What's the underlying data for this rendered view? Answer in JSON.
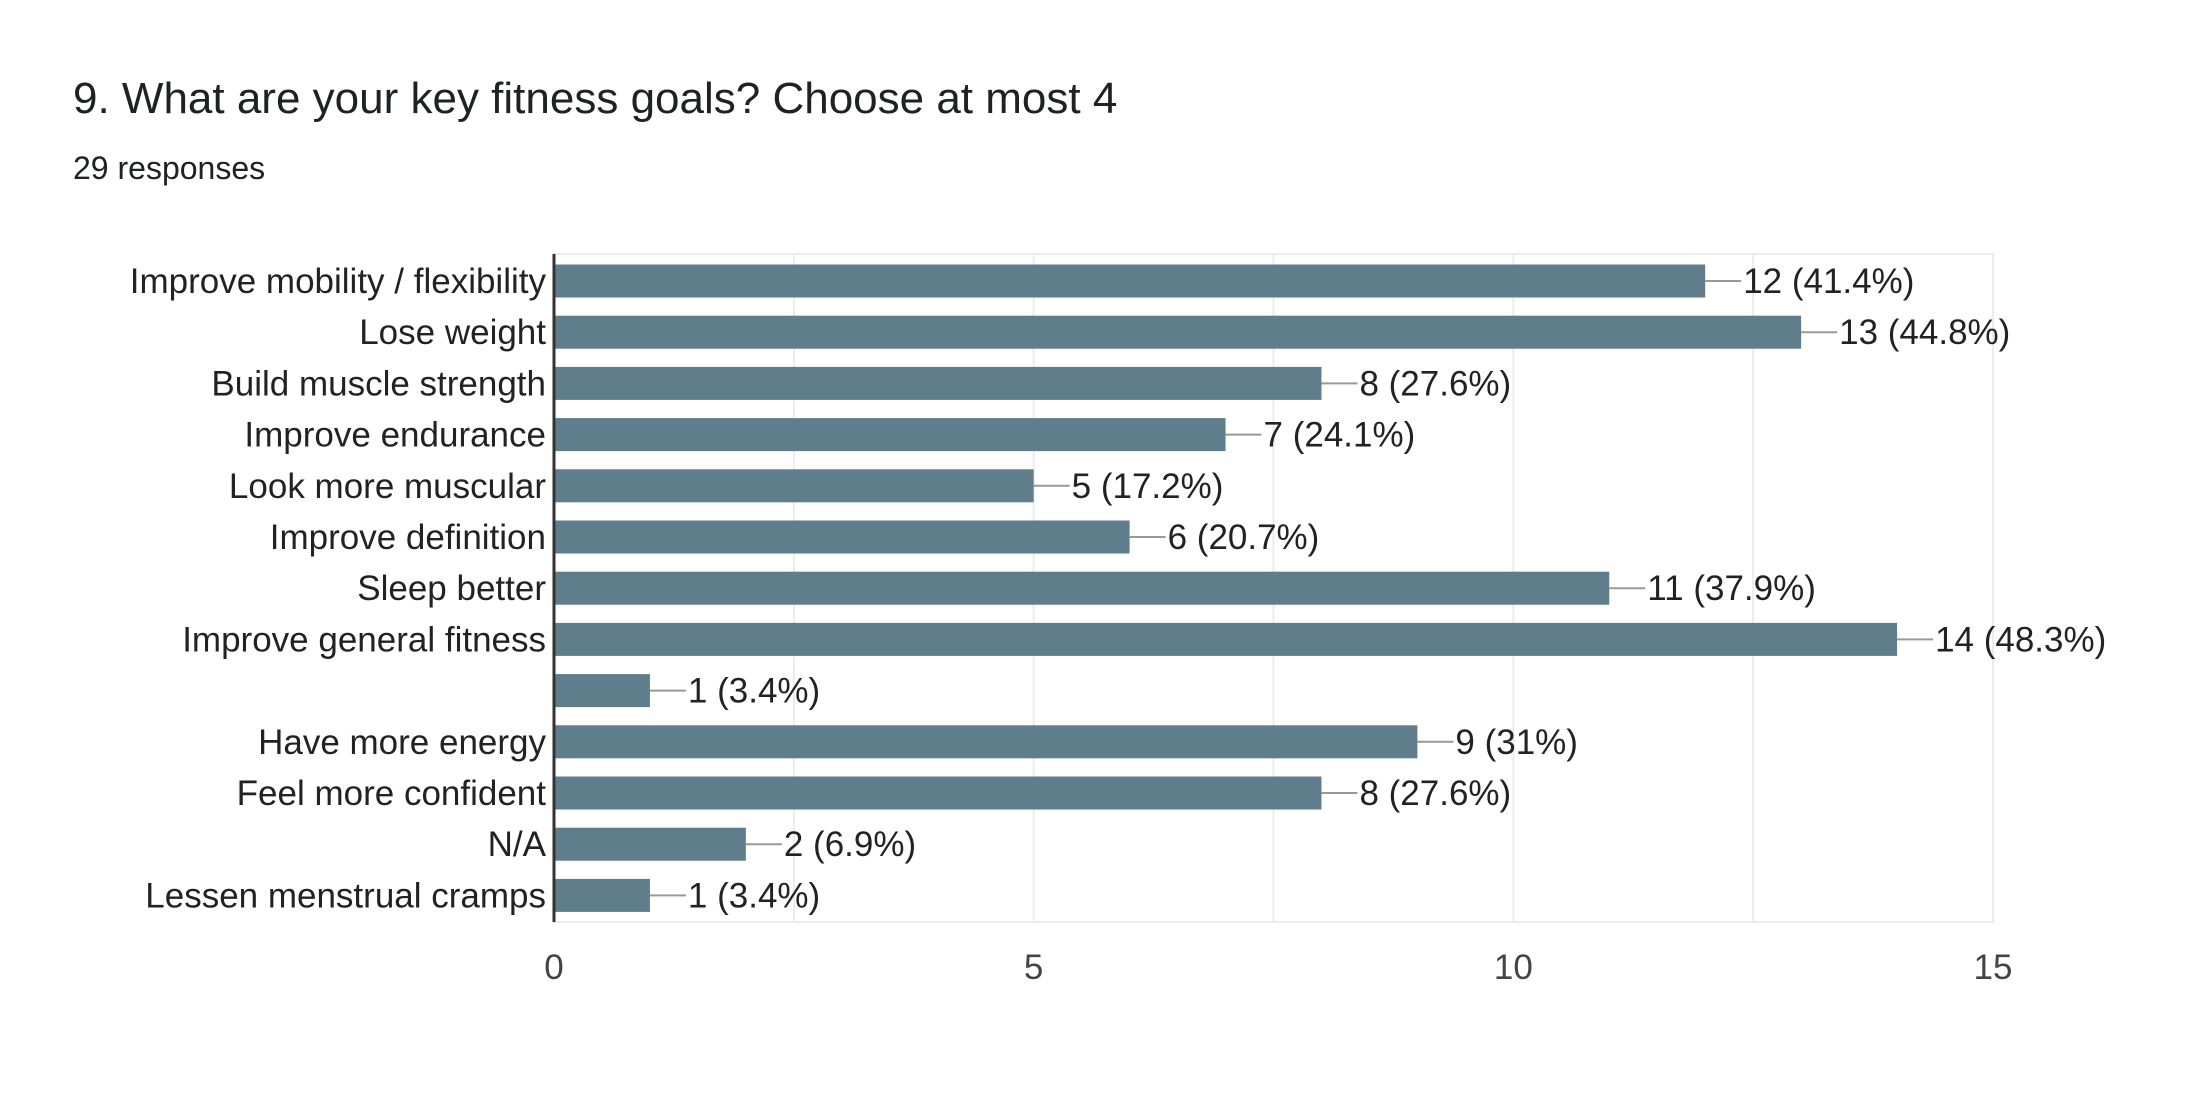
{
  "header": {
    "title": "9. What are your key fitness goals? Choose at most 4",
    "responses": "29 responses"
  },
  "colors": {
    "bar": "#607d8b",
    "grid": "#ebebeb",
    "axis": "#333333",
    "connector": "#999999"
  },
  "chart_data": {
    "type": "bar",
    "orientation": "horizontal",
    "categories": [
      "Improve mobility / flexibility",
      "Lose weight",
      "Build muscle strength",
      "Improve endurance",
      "Look more muscular",
      "Improve definition",
      "Sleep better",
      "Improve general fitness",
      "",
      "Have more energy",
      "Feel more confident",
      "N/A",
      "Lessen menstrual cramps"
    ],
    "values": [
      12,
      13,
      8,
      7,
      5,
      6,
      11,
      14,
      1,
      9,
      8,
      2,
      1
    ],
    "data_labels": [
      "12 (41.4%)",
      "13 (44.8%)",
      "8 (27.6%)",
      "7 (24.1%)",
      "5 (17.2%)",
      "6 (20.7%)",
      "11 (37.9%)",
      "14 (48.3%)",
      "1 (3.4%)",
      "9 (31%)",
      "8 (27.6%)",
      "2 (6.9%)",
      "1 (3.4%)"
    ],
    "xlim": [
      0,
      15
    ],
    "xticks": [
      0,
      5,
      10,
      15
    ],
    "tick_labels": [
      "0",
      "5",
      "10",
      "15"
    ],
    "grid": true,
    "legend": "none"
  }
}
